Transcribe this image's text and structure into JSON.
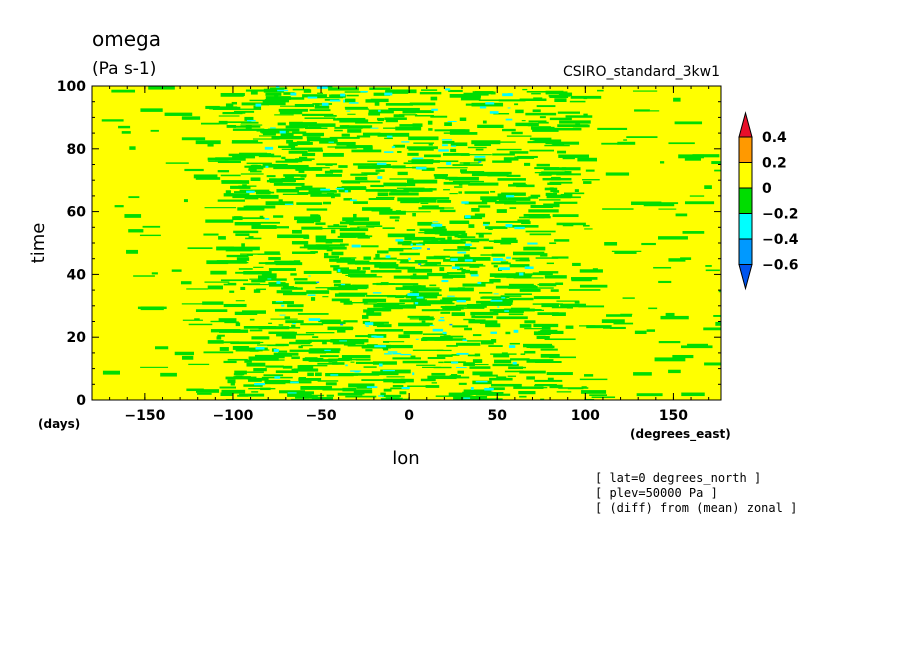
{
  "chart_data": {
    "type": "heatmap",
    "title": "omega",
    "units": "(Pa s-1)",
    "source": "CSIRO_standard_3kw1",
    "xlabel": "lon",
    "xunits": "(degrees_east)",
    "ylabel": "time",
    "yunits": "(days)",
    "xlim": [
      -180,
      177
    ],
    "ylim": [
      0,
      100
    ],
    "xticks": [
      -150,
      -100,
      -50,
      0,
      50,
      100,
      150
    ],
    "yticks": [
      0,
      20,
      40,
      60,
      80,
      100
    ],
    "colorbar": {
      "levels": [
        "0.4",
        "0.2",
        "0",
        "-0.2",
        "-0.4",
        "-0.6"
      ],
      "bins": [
        {
          "range": "> 0.4",
          "color": "#e8102a"
        },
        {
          "range": "0.2 to 0.4",
          "color": "#ff9900"
        },
        {
          "range": "0 to 0.2",
          "color": "#ffff00"
        },
        {
          "range": "-0.2 to 0",
          "color": "#00dd00"
        },
        {
          "range": "-0.4 to -0.2",
          "color": "#00ffff"
        },
        {
          "range": "-0.6 to -0.4",
          "color": "#0099ff"
        },
        {
          "range": "< -0.6",
          "color": "#0055ee"
        }
      ]
    },
    "annotations": [
      "[ lat=0 degrees_north ]",
      "[ plev=50000 Pa ]",
      "[ (diff) from (mean) zonal ]"
    ],
    "field_description": "Yellow background (0 to 0.2) with dense green (-0.2 to 0) streaks concentrated between about -120 and 100 degrees east, scattered cyan (-0.4 to -0.2) patches between about -90 and 60, sparse green streaks outside that band."
  }
}
